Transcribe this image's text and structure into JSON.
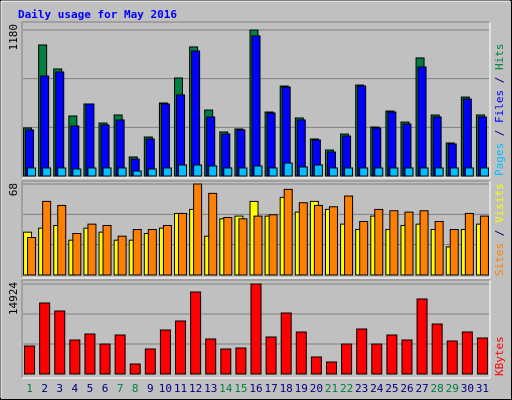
{
  "chart_data": [
    {
      "type": "bar",
      "title": "Daily usage for May 2016",
      "ylim": [
        0,
        1180
      ],
      "yticks": [
        1180
      ],
      "legend_separator": " / ",
      "series": [
        {
          "name": "Hits",
          "color": "#008040",
          "values": [
            388,
            1059,
            865,
            485,
            582,
            428,
            493,
            154,
            315,
            590,
            792,
            1043,
            533,
            356,
            380,
            1180,
            517,
            727,
            469,
            299,
            210,
            339,
            735,
            396,
            525,
            436,
            954,
            493,
            267,
            638,
            493
          ]
        },
        {
          "name": "Files",
          "color": "#0000ff",
          "values": [
            372,
            808,
            841,
            404,
            582,
            412,
            453,
            137,
            299,
            582,
            655,
            1010,
            477,
            339,
            372,
            1132,
            509,
            719,
            453,
            291,
            194,
            323,
            727,
            388,
            517,
            420,
            881,
            477,
            259,
            622,
            477
          ]
        },
        {
          "name": "Pages",
          "color": "#00c0ff",
          "values": [
            65,
            65,
            65,
            57,
            65,
            65,
            65,
            40,
            57,
            65,
            89,
            89,
            81,
            65,
            65,
            81,
            65,
            105,
            73,
            89,
            65,
            65,
            65,
            65,
            65,
            65,
            65,
            65,
            65,
            65,
            65
          ]
        }
      ]
    },
    {
      "type": "bar",
      "ylim": [
        0,
        68
      ],
      "yticks": [
        68
      ],
      "legend_separator": " / ",
      "series": [
        {
          "name": "Visits",
          "color": "#ffff00",
          "values": [
            32,
            35,
            37,
            26,
            35,
            32,
            26,
            26,
            31,
            35,
            46,
            49,
            29,
            42,
            44,
            55,
            44,
            58,
            47,
            55,
            49,
            38,
            34,
            44,
            34,
            37,
            38,
            34,
            21,
            34,
            38
          ]
        },
        {
          "name": "Sites",
          "color": "#ff8000",
          "values": [
            28,
            55,
            52,
            31,
            38,
            37,
            29,
            34,
            34,
            37,
            46,
            68,
            61,
            43,
            42,
            44,
            45,
            64,
            54,
            52,
            51,
            59,
            40,
            49,
            48,
            47,
            48,
            40,
            34,
            46,
            44
          ]
        }
      ]
    },
    {
      "type": "bar",
      "ylim": [
        0,
        14924
      ],
      "yticks": [
        14924
      ],
      "categories": [
        "1",
        "2",
        "3",
        "4",
        "5",
        "6",
        "7",
        "8",
        "9",
        "10",
        "11",
        "12",
        "13",
        "14",
        "15",
        "16",
        "17",
        "18",
        "19",
        "20",
        "21",
        "22",
        "23",
        "24",
        "25",
        "26",
        "27",
        "28",
        "29",
        "30",
        "31"
      ],
      "category_colors": [
        "#008040",
        "#000080",
        "#000080",
        "#000080",
        "#000080",
        "#000080",
        "#008040",
        "#008040",
        "#000080",
        "#000080",
        "#000080",
        "#000080",
        "#000080",
        "#008040",
        "#008040",
        "#000080",
        "#000080",
        "#000080",
        "#000080",
        "#000080",
        "#008040",
        "#008040",
        "#000080",
        "#000080",
        "#000080",
        "#000080",
        "#000080",
        "#008040",
        "#008040",
        "#000080",
        "#000080"
      ],
      "series": [
        {
          "name": "KBytes",
          "color": "#ff0000",
          "values": [
            4643,
            11773,
            10447,
            5638,
            6633,
            4975,
            6467,
            1658,
            4146,
            7296,
            8789,
            13597,
            5804,
            4146,
            4311,
            14924,
            6135,
            10115,
            6965,
            2819,
            1990,
            4975,
            7462,
            4975,
            6467,
            5638,
            12437,
            8291,
            5472,
            6965,
            5970
          ]
        }
      ]
    }
  ]
}
